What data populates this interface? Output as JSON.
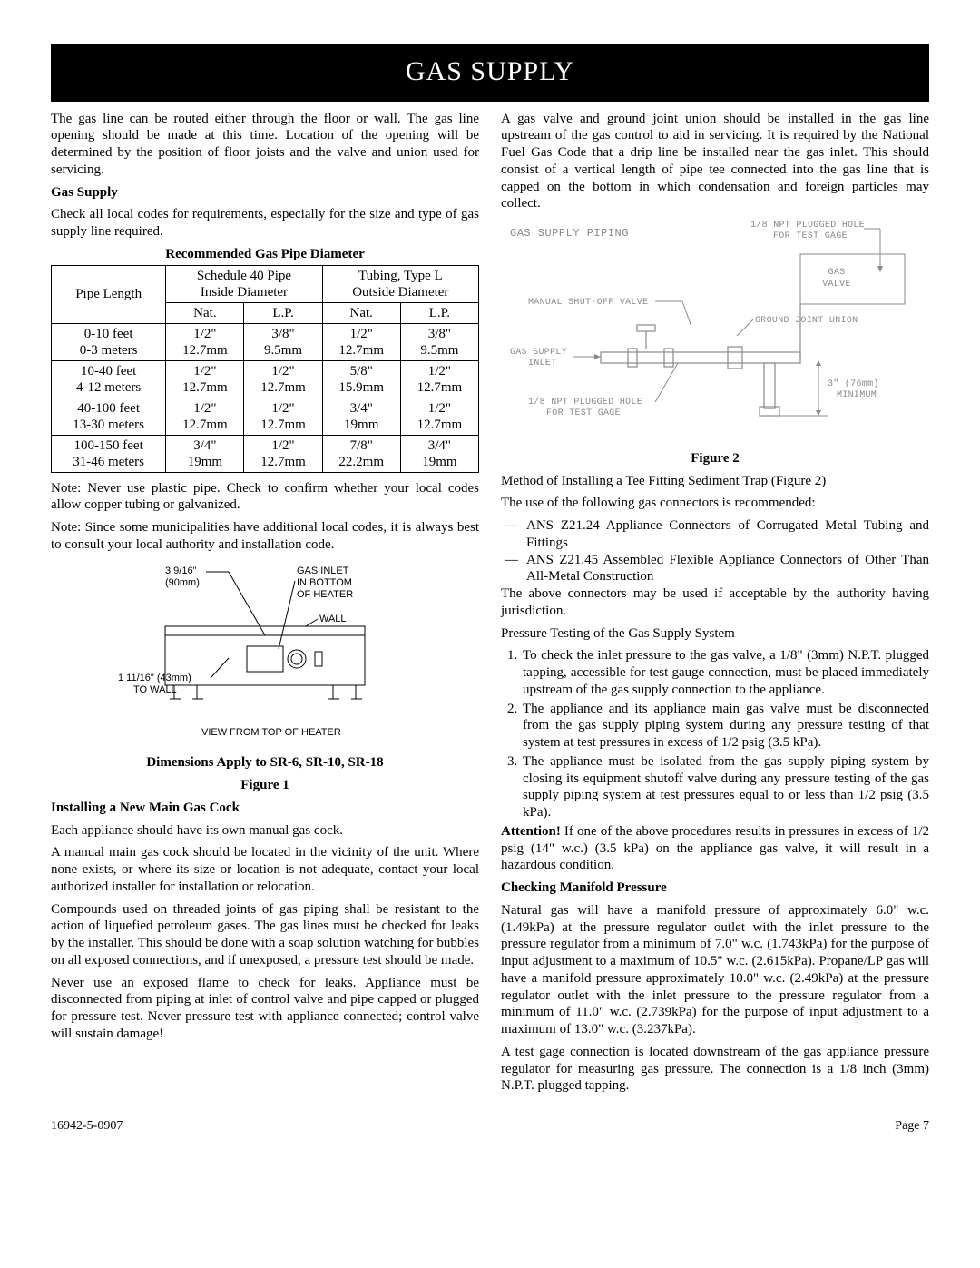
{
  "title": "GAS SUPPLY",
  "left": {
    "intro": "The gas line can be routed either through the floor or wall. The gas line opening should be made at this time. Location of the opening will be determined by the position of floor joists and the valve and union used for servicing.",
    "h_gas_supply": "Gas Supply",
    "gas_supply_p": "Check all local codes for requirements, especially for the size and type of gas supply line required.",
    "table_title": "Recommended Gas Pipe Diameter",
    "table": {
      "headers": {
        "pipe_length": "Pipe Length",
        "sched40": "Schedule 40 Pipe\nInside Diameter",
        "tubing": "Tubing, Type L\nOutside Diameter",
        "nat": "Nat.",
        "lp": "L.P."
      },
      "rows": [
        {
          "len": "0-10 feet\n0-3 meters",
          "s_nat": "1/2\"\n12.7mm",
          "s_lp": "3/8\"\n9.5mm",
          "t_nat": "1/2\"\n12.7mm",
          "t_lp": "3/8\"\n9.5mm"
        },
        {
          "len": "10-40 feet\n4-12 meters",
          "s_nat": "1/2\"\n12.7mm",
          "s_lp": "1/2\"\n12.7mm",
          "t_nat": "5/8\"\n15.9mm",
          "t_lp": "1/2\"\n12.7mm"
        },
        {
          "len": "40-100 feet\n13-30 meters",
          "s_nat": "1/2\"\n12.7mm",
          "s_lp": "1/2\"\n12.7mm",
          "t_nat": "3/4\"\n19mm",
          "t_lp": "1/2\"\n12.7mm"
        },
        {
          "len": "100-150 feet\n31-46 meters",
          "s_nat": "3/4\"\n19mm",
          "s_lp": "1/2\"\n12.7mm",
          "t_nat": "7/8\"\n22.2mm",
          "t_lp": "3/4\"\n19mm"
        }
      ]
    },
    "note1": "Note: Never use plastic pipe. Check to confirm whether your local codes allow copper tubing or galvanized.",
    "note2": "Note: Since some municipalities have additional local codes, it is always best to consult your local authority and installation code.",
    "fig1": {
      "dim1": "3 9/16\"",
      "dim1mm": "(90mm)",
      "gas_inlet": "GAS INLET",
      "in_bottom": "IN BOTTOM",
      "of_heater": "OF HEATER",
      "wall": "WALL",
      "dim2": "1 11/16\" (43mm)",
      "to_wall": "TO WALL",
      "view": "VIEW FROM TOP OF HEATER"
    },
    "dims_apply": "Dimensions Apply to SR-6, SR-10, SR-18",
    "fig1_label": "Figure 1",
    "h_install": "Installing a New Main Gas Cock",
    "install_p1": "Each appliance should have its own manual gas cock.",
    "install_p2": "A manual main gas cock should be located in the vicinity of the unit. Where none exists, or where its size or location is not adequate, contact your local authorized installer for installation or relocation.",
    "install_p3": "Compounds used on threaded joints of gas piping shall be resistant to the action of liquefied petroleum gases. The gas lines must be checked for leaks by the installer. This should be done with a soap solution watching for bubbles on all exposed connections, and if unexposed, a pressure test should be made.",
    "install_p4": "Never use an exposed flame to check for leaks. Appliance must be disconnected from piping at inlet of control valve and pipe capped or plugged for pressure test. Never pressure test with appliance connected; control valve will sustain damage!"
  },
  "right": {
    "intro": "A gas valve and ground joint union should be installed in the gas line upstream of the gas control to aid in servicing. It is required by the National Fuel Gas Code that a drip line be installed near the gas inlet. This should consist of a vertical length of pipe tee connected into the gas line that is capped on the bottom in which condensation and foreign particles may collect.",
    "fig2": {
      "title": "GAS SUPPLY PIPING",
      "npt_top": "1/8 NPT PLUGGED HOLE\nFOR TEST GAGE",
      "gas_valve": "GAS\nVALVE",
      "manual_shutoff": "MANUAL SHUT-OFF VALVE",
      "ground_joint": "GROUND JOINT UNION",
      "gas_supply_inlet": "GAS SUPPLY\nINLET",
      "npt_bottom": "1/8 NPT PLUGGED HOLE\nFOR TEST GAGE",
      "minimum": "3\" (76mm)\nMINIMUM"
    },
    "fig2_label": "Figure 2",
    "method": "Method of Installing a Tee Fitting Sediment Trap (Figure 2)",
    "recommend": "The use of the following gas connectors is recommended:",
    "connectors": [
      "ANS Z21.24 Appliance Connectors of Corrugated Metal Tubing and Fittings",
      "ANS Z21.45 Assembled Flexible Appliance Connectors of Other Than All-Metal Construction"
    ],
    "above_conn": "The above connectors may be used if acceptable by the authority having jurisdiction.",
    "h_pressure": "Pressure Testing of the Gas Supply System",
    "pressure_steps": [
      "To check the inlet pressure to the gas valve, a 1/8\" (3mm) N.P.T. plugged tapping, accessible for test gauge connection, must be placed immediately upstream of the gas supply connection to the appliance.",
      "The appliance and its appliance main gas valve must be disconnected from the gas supply piping system during any pressure testing of that system at test pressures in excess of 1/2 psig (3.5 kPa).",
      "The appliance must be isolated from the gas supply piping system by closing its equipment shutoff valve during any pressure testing of the gas supply piping system at test pressures equal to or less than 1/2 psig (3.5 kPa)."
    ],
    "attention_word": "Attention!",
    "attention": " If one of the above procedures results in pressures in excess of 1/2 psig (14\" w.c.) (3.5 kPa) on the appliance gas valve, it will result in a hazardous condition.",
    "h_manifold": "Checking Manifold Pressure",
    "manifold_p": "Natural gas will have a manifold pressure of approximately 6.0\" w.c. (1.49kPa) at the pressure regulator outlet with the inlet pressure to the pressure regulator from a minimum of 7.0\" w.c. (1.743kPa) for the purpose of input adjustment to a maximum of 10.5\" w.c. (2.615kPa).  Propane/LP gas will have a manifold pressure approximately 10.0\" w.c. (2.49kPa) at the pressure regulator outlet with the inlet pressure to the pressure regulator from a minimum of 11.0\" w.c. (2.739kPa) for the purpose of input adjustment to a maximum of 13.0\" w.c. (3.237kPa).",
    "test_gage": "A test gage connection is located downstream of the gas appliance pressure regulator for measuring gas pressure. The connection is a 1/8 inch (3mm) N.P.T. plugged tapping."
  },
  "footer": {
    "left": "16942-5-0907",
    "right": "Page 7"
  }
}
